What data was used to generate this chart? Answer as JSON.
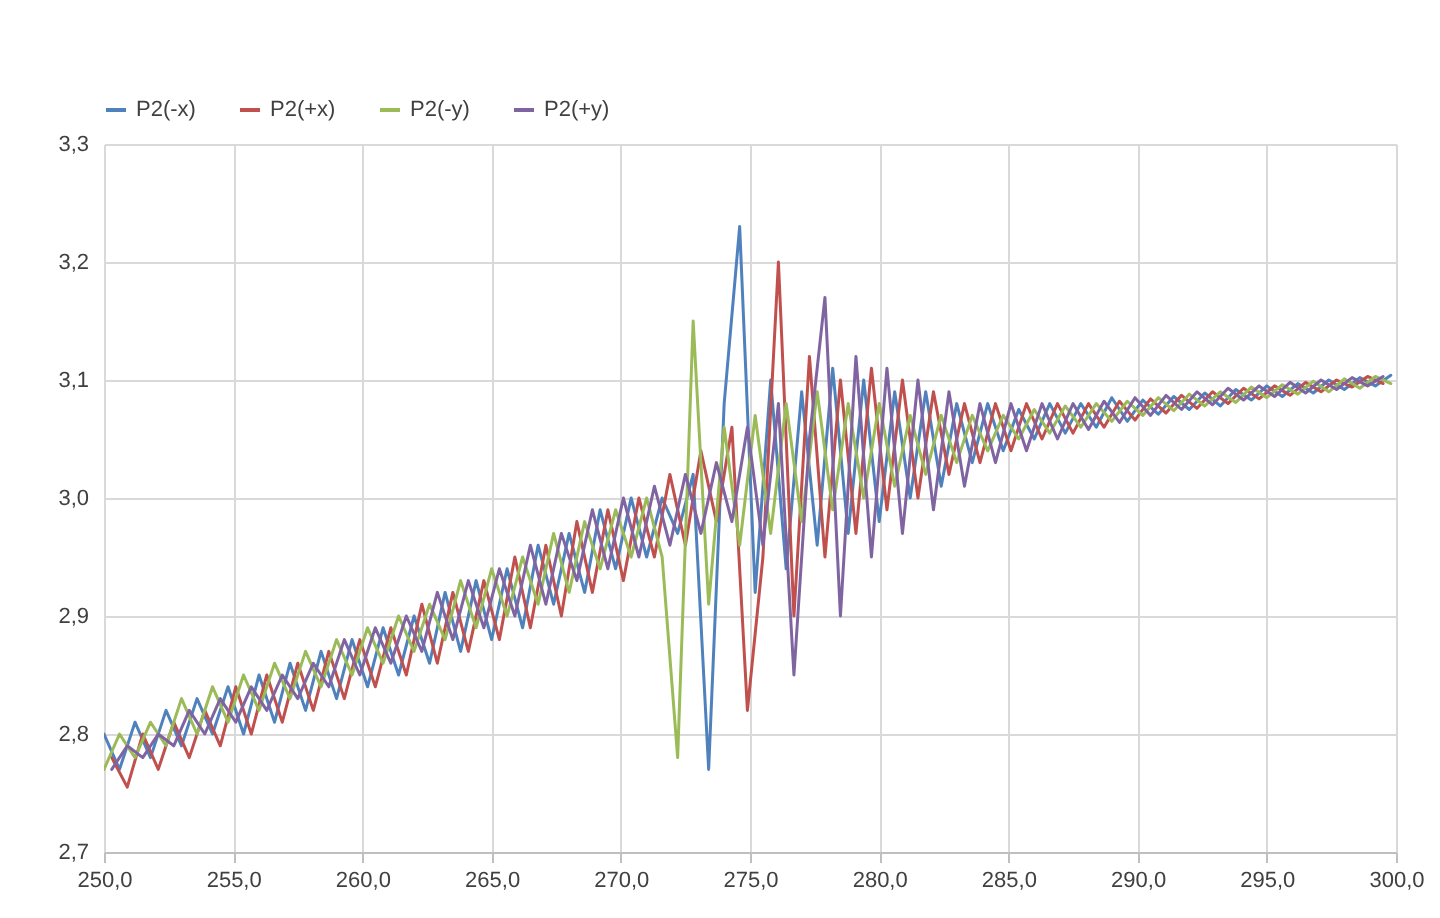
{
  "chart_data": {
    "type": "line",
    "xlim": [
      250,
      300
    ],
    "xticks": [
      {
        "value": 250,
        "label": "250,0"
      },
      {
        "value": 255,
        "label": "255,0"
      },
      {
        "value": 260,
        "label": "260,0"
      },
      {
        "value": 265,
        "label": "265,0"
      },
      {
        "value": 270,
        "label": "270,0"
      },
      {
        "value": 275,
        "label": "275,0"
      },
      {
        "value": 280,
        "label": "280,0"
      },
      {
        "value": 285,
        "label": "285,0"
      },
      {
        "value": 290,
        "label": "290,0"
      },
      {
        "value": 295,
        "label": "295,0"
      },
      {
        "value": 300,
        "label": "300,0"
      }
    ],
    "ylim": [
      2.7,
      3.3
    ],
    "yticks": [
      {
        "value": 2.7,
        "label": "2,7"
      },
      {
        "value": 2.8,
        "label": "2,8"
      },
      {
        "value": 2.9,
        "label": "2,9"
      },
      {
        "value": 3.0,
        "label": "3,0"
      },
      {
        "value": 3.1,
        "label": "3,1"
      },
      {
        "value": 3.2,
        "label": "3,2"
      },
      {
        "value": 3.3,
        "label": "3,3"
      }
    ],
    "grid": true,
    "legend": "top",
    "marker": "none",
    "line_style": "solid",
    "series": [
      {
        "name": "P2(-x)",
        "color": "#4f81bd",
        "x": [
          250,
          250.6,
          251.2,
          251.8,
          252.4,
          253,
          253.6,
          254.2,
          254.8,
          255.4,
          256,
          256.6,
          257.2,
          257.8,
          258.4,
          259,
          259.6,
          260.2,
          260.8,
          261.4,
          262,
          262.6,
          263.2,
          263.8,
          264.4,
          265,
          265.6,
          266.2,
          266.8,
          267.4,
          268,
          268.6,
          269.2,
          269.8,
          270.4,
          271,
          271.6,
          272.2,
          272.8,
          273.4,
          274,
          274.6,
          275.2,
          275.8,
          276.4,
          277,
          277.6,
          278.2,
          278.8,
          279.4,
          280,
          280.6,
          281.2,
          281.8,
          282.4,
          283,
          283.6,
          284.2,
          284.8,
          285.4,
          286,
          286.6,
          287.2,
          287.8,
          288.4,
          289,
          289.6,
          290.2,
          290.8,
          291.4,
          292,
          292.6,
          293.2,
          293.8,
          294.4,
          295,
          295.6,
          296.2,
          296.8,
          297.4,
          298,
          298.6,
          299.2,
          299.8
        ],
        "values": [
          2.8,
          2.77,
          2.81,
          2.78,
          2.82,
          2.79,
          2.83,
          2.8,
          2.84,
          2.8,
          2.85,
          2.81,
          2.86,
          2.82,
          2.87,
          2.83,
          2.88,
          2.84,
          2.89,
          2.85,
          2.9,
          2.86,
          2.92,
          2.87,
          2.93,
          2.88,
          2.94,
          2.89,
          2.96,
          2.91,
          2.97,
          2.92,
          2.99,
          2.94,
          3.0,
          2.95,
          3.0,
          2.97,
          3.02,
          2.77,
          3.08,
          3.23,
          2.92,
          3.1,
          2.94,
          3.09,
          2.96,
          3.11,
          2.97,
          3.1,
          2.98,
          3.09,
          3.0,
          3.09,
          3.01,
          3.08,
          3.03,
          3.08,
          3.04,
          3.075,
          3.05,
          3.08,
          3.055,
          3.08,
          3.06,
          3.085,
          3.065,
          3.083,
          3.071,
          3.086,
          3.075,
          3.089,
          3.078,
          3.092,
          3.083,
          3.095,
          3.086,
          3.097,
          3.089,
          3.1,
          3.092,
          3.102,
          3.095,
          3.104
        ]
      },
      {
        "name": "P2(+x)",
        "color": "#c0504d",
        "x": [
          250.3,
          250.9,
          251.5,
          252.1,
          252.7,
          253.3,
          253.9,
          254.5,
          255.1,
          255.7,
          256.3,
          256.9,
          257.5,
          258.1,
          258.7,
          259.3,
          259.9,
          260.5,
          261.1,
          261.7,
          262.3,
          262.9,
          263.5,
          264.1,
          264.7,
          265.3,
          265.9,
          266.5,
          267.1,
          267.7,
          268.3,
          268.9,
          269.5,
          270.1,
          270.7,
          271.3,
          271.9,
          272.5,
          273.1,
          273.7,
          274.3,
          274.9,
          275.5,
          276.1,
          276.7,
          277.3,
          277.9,
          278.5,
          279.1,
          279.7,
          280.3,
          280.9,
          281.5,
          282.1,
          282.7,
          283.3,
          283.9,
          284.5,
          285.1,
          285.7,
          286.3,
          286.9,
          287.5,
          288.1,
          288.7,
          289.3,
          289.9,
          290.5,
          291.1,
          291.7,
          292.3,
          292.9,
          293.5,
          294.1,
          294.7,
          295.3,
          295.9,
          296.5,
          297.1,
          297.7,
          298.3,
          298.9,
          299.5
        ],
        "values": [
          2.78,
          2.755,
          2.8,
          2.77,
          2.81,
          2.78,
          2.82,
          2.79,
          2.84,
          2.8,
          2.85,
          2.81,
          2.86,
          2.82,
          2.87,
          2.83,
          2.88,
          2.84,
          2.89,
          2.85,
          2.91,
          2.86,
          2.92,
          2.87,
          2.93,
          2.88,
          2.95,
          2.89,
          2.96,
          2.9,
          2.98,
          2.92,
          2.99,
          2.93,
          3.0,
          2.95,
          3.02,
          2.96,
          3.04,
          2.98,
          3.06,
          2.82,
          2.95,
          3.2,
          2.9,
          3.12,
          2.95,
          3.1,
          2.97,
          3.11,
          2.99,
          3.1,
          3.0,
          3.09,
          3.02,
          3.08,
          3.03,
          3.08,
          3.04,
          3.08,
          3.05,
          3.08,
          3.055,
          3.08,
          3.06,
          3.082,
          3.066,
          3.084,
          3.072,
          3.087,
          3.076,
          3.09,
          3.08,
          3.093,
          3.084,
          3.095,
          3.087,
          3.098,
          3.09,
          3.1,
          3.094,
          3.103,
          3.097
        ]
      },
      {
        "name": "P2(-y)",
        "color": "#9bbb59",
        "x": [
          250,
          250.6,
          251.2,
          251.8,
          252.4,
          253,
          253.6,
          254.2,
          254.8,
          255.4,
          256,
          256.6,
          257.2,
          257.8,
          258.4,
          259,
          259.6,
          260.2,
          260.8,
          261.4,
          262,
          262.6,
          263.2,
          263.8,
          264.4,
          265,
          265.6,
          266.2,
          266.8,
          267.4,
          268,
          268.6,
          269.2,
          269.8,
          270.4,
          271,
          271.6,
          272.2,
          272.8,
          273.4,
          274,
          274.6,
          275.2,
          275.8,
          276.4,
          277,
          277.6,
          278.2,
          278.8,
          279.4,
          280,
          280.6,
          281.2,
          281.8,
          282.4,
          283,
          283.6,
          284.2,
          284.8,
          285.4,
          286,
          286.6,
          287.2,
          287.8,
          288.4,
          289,
          289.6,
          290.2,
          290.8,
          291.4,
          292,
          292.6,
          293.2,
          293.8,
          294.4,
          295,
          295.6,
          296.2,
          296.8,
          297.4,
          298,
          298.6,
          299.2,
          299.8
        ],
        "values": [
          2.77,
          2.8,
          2.78,
          2.81,
          2.79,
          2.83,
          2.8,
          2.84,
          2.81,
          2.85,
          2.82,
          2.86,
          2.83,
          2.87,
          2.84,
          2.88,
          2.85,
          2.89,
          2.86,
          2.9,
          2.87,
          2.91,
          2.88,
          2.93,
          2.89,
          2.94,
          2.9,
          2.95,
          2.91,
          2.97,
          2.92,
          2.98,
          2.94,
          2.99,
          2.95,
          3.0,
          2.95,
          2.78,
          3.15,
          2.91,
          3.06,
          2.96,
          3.07,
          2.97,
          3.08,
          2.98,
          3.09,
          2.99,
          3.08,
          3.0,
          3.08,
          3.01,
          3.07,
          3.02,
          3.07,
          3.03,
          3.07,
          3.04,
          3.07,
          3.05,
          3.075,
          3.055,
          3.078,
          3.06,
          3.08,
          3.065,
          3.082,
          3.07,
          3.085,
          3.074,
          3.088,
          3.078,
          3.09,
          3.081,
          3.094,
          3.085,
          3.096,
          3.088,
          3.099,
          3.09,
          3.101,
          3.093,
          3.103,
          3.097
        ]
      },
      {
        "name": "P2(+y)",
        "color": "#8064a2",
        "x": [
          250.3,
          250.9,
          251.5,
          252.1,
          252.7,
          253.3,
          253.9,
          254.5,
          255.1,
          255.7,
          256.3,
          256.9,
          257.5,
          258.1,
          258.7,
          259.3,
          259.9,
          260.5,
          261.1,
          261.7,
          262.3,
          262.9,
          263.5,
          264.1,
          264.7,
          265.3,
          265.9,
          266.5,
          267.1,
          267.7,
          268.3,
          268.9,
          269.5,
          270.1,
          270.7,
          271.3,
          271.9,
          272.5,
          273.1,
          273.7,
          274.3,
          274.9,
          275.5,
          276.1,
          276.7,
          277.3,
          277.9,
          278.5,
          279.1,
          279.7,
          280.3,
          280.9,
          281.5,
          282.1,
          282.7,
          283.3,
          283.9,
          284.5,
          285.1,
          285.7,
          286.3,
          286.9,
          287.5,
          288.1,
          288.7,
          289.3,
          289.9,
          290.5,
          291.1,
          291.7,
          292.3,
          292.9,
          293.5,
          294.1,
          294.7,
          295.3,
          295.9,
          296.5,
          297.1,
          297.7,
          298.3,
          298.9,
          299.5
        ],
        "values": [
          2.77,
          2.79,
          2.78,
          2.8,
          2.79,
          2.82,
          2.8,
          2.83,
          2.81,
          2.84,
          2.82,
          2.85,
          2.83,
          2.86,
          2.84,
          2.88,
          2.85,
          2.89,
          2.86,
          2.9,
          2.87,
          2.92,
          2.88,
          2.93,
          2.89,
          2.94,
          2.9,
          2.96,
          2.91,
          2.97,
          2.93,
          2.99,
          2.94,
          3.0,
          2.95,
          3.01,
          2.96,
          3.02,
          2.97,
          3.03,
          2.98,
          3.06,
          2.96,
          3.08,
          2.85,
          3.05,
          3.17,
          2.9,
          3.12,
          2.95,
          3.11,
          2.97,
          3.1,
          2.99,
          3.09,
          3.01,
          3.08,
          3.03,
          3.08,
          3.04,
          3.08,
          3.05,
          3.08,
          3.058,
          3.082,
          3.064,
          3.085,
          3.07,
          3.087,
          3.075,
          3.09,
          3.079,
          3.093,
          3.083,
          3.095,
          3.086,
          3.098,
          3.089,
          3.1,
          3.092,
          3.102,
          3.095,
          3.103
        ]
      }
    ]
  }
}
